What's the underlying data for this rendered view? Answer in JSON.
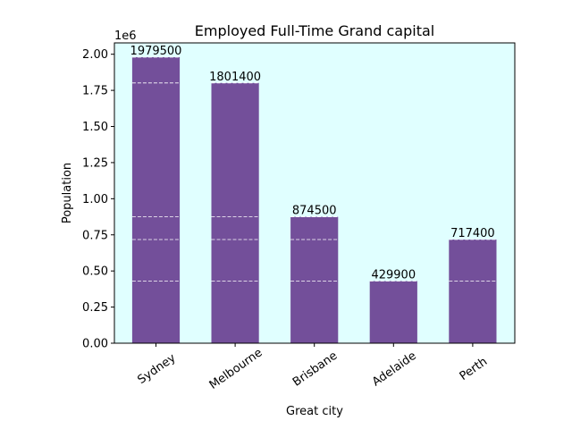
{
  "chart_data": {
    "type": "bar",
    "title": "Employed Full-Time Grand capital",
    "xlabel": "Great city",
    "ylabel": "Population",
    "offset_text": "1e6",
    "categories": [
      "Sydney",
      "Melbourne",
      "Brisbane",
      "Adelaide",
      "Perth"
    ],
    "values": [
      1979500,
      1801400,
      874500,
      429900,
      717400
    ],
    "data_labels": [
      "1979500",
      "1801400",
      "874500",
      "429900",
      "717400"
    ],
    "ylim": [
      0,
      2078475
    ],
    "yticks": [
      0,
      250000,
      500000,
      750000,
      1000000,
      1250000,
      1500000,
      1750000,
      2000000
    ],
    "ytick_labels": [
      "0.00",
      "0.25",
      "0.50",
      "0.75",
      "1.00",
      "1.25",
      "1.50",
      "1.75",
      "2.00"
    ],
    "grid": "horizontal dashed white lines at each bar top",
    "bar_color": "#734f9a",
    "plot_background": "#e0ffff"
  }
}
